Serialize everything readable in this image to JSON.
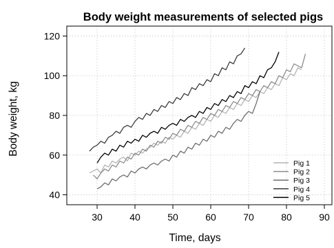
{
  "chart_data": {
    "type": "line",
    "title": "Body weight measurements of selected pigs",
    "xlabel": "Time, days",
    "ylabel": "Body weight, kg",
    "xlim": [
      22,
      92
    ],
    "ylim": [
      35,
      125
    ],
    "x_ticks": [
      30,
      40,
      50,
      60,
      70,
      80,
      90
    ],
    "y_ticks": [
      40,
      60,
      80,
      100,
      120
    ],
    "grid": true,
    "legend_position": "bottom-right",
    "series": [
      {
        "name": "Pig 1",
        "color": "#b4b4b4",
        "x": [
          28,
          29,
          30,
          31,
          32,
          33,
          34,
          35,
          36,
          37,
          38,
          39,
          40,
          41,
          42,
          43,
          44,
          45,
          46,
          47,
          48,
          49,
          50,
          51,
          52,
          53,
          54,
          55,
          56,
          57,
          58,
          59,
          60,
          61,
          62,
          63,
          64,
          65,
          66,
          67,
          68,
          69,
          70,
          71,
          72,
          73,
          74,
          75,
          76,
          77,
          78,
          79,
          80,
          81,
          82,
          83,
          84
        ],
        "y": [
          51,
          52,
          53,
          51,
          55,
          54,
          57,
          56,
          58,
          59,
          57,
          61,
          60,
          62,
          61,
          63,
          64,
          66,
          65,
          67,
          66,
          69,
          68,
          70,
          69,
          72,
          71,
          74,
          73,
          76,
          75,
          78,
          77,
          80,
          79,
          82,
          81,
          84,
          83,
          86,
          85,
          88,
          87,
          90,
          89,
          92,
          91,
          94,
          93,
          96,
          95,
          99,
          98,
          101,
          100,
          104,
          103
        ]
      },
      {
        "name": "Pig 2",
        "color": "#8c8c8c",
        "x": [
          29,
          30,
          31,
          32,
          33,
          34,
          35,
          36,
          37,
          38,
          39,
          40,
          41,
          42,
          43,
          44,
          45,
          46,
          47,
          48,
          49,
          50,
          51,
          52,
          53,
          54,
          55,
          56,
          57,
          58,
          59,
          60,
          61,
          62,
          63,
          64,
          65,
          66,
          67,
          68,
          69,
          70,
          71,
          72,
          73,
          74,
          75,
          76,
          77,
          78,
          79,
          80,
          81,
          82,
          83,
          84,
          85
        ],
        "y": [
          50,
          48,
          51,
          53,
          52,
          55,
          54,
          57,
          56,
          59,
          58,
          61,
          60,
          63,
          62,
          65,
          64,
          67,
          66,
          69,
          68,
          71,
          70,
          73,
          72,
          75,
          74,
          77,
          76,
          79,
          78,
          81,
          80,
          83,
          82,
          85,
          84,
          87,
          86,
          89,
          88,
          91,
          90,
          93,
          92,
          95,
          94,
          97,
          96,
          100,
          99,
          103,
          102,
          106,
          105,
          104,
          111
        ]
      },
      {
        "name": "Pig 3",
        "color": "#6e6e6e",
        "x": [
          30,
          31,
          32,
          33,
          34,
          35,
          36,
          37,
          38,
          39,
          40,
          41,
          42,
          43,
          44,
          45,
          46,
          47,
          48,
          49,
          50,
          51,
          52,
          53,
          54,
          55,
          56,
          57,
          58,
          59,
          60,
          61,
          62,
          63,
          64,
          65,
          66,
          67,
          68,
          69,
          70,
          71,
          72,
          73
        ],
        "y": [
          43,
          44,
          46,
          45,
          48,
          47,
          49,
          50,
          49,
          52,
          51,
          53,
          54,
          53,
          55,
          56,
          55,
          57,
          58,
          57,
          60,
          59,
          62,
          61,
          64,
          63,
          66,
          65,
          68,
          67,
          70,
          69,
          72,
          71,
          74,
          73,
          76,
          78,
          77,
          80,
          82,
          81,
          86,
          92
        ]
      },
      {
        "name": "Pig 4",
        "color": "#3a3a3a",
        "x": [
          28,
          29,
          30,
          31,
          32,
          33,
          34,
          35,
          36,
          37,
          38,
          39,
          40,
          41,
          42,
          43,
          44,
          45,
          46,
          47,
          48,
          49,
          50,
          51,
          52,
          53,
          54,
          55,
          56,
          57,
          58,
          59,
          60,
          61,
          62,
          63,
          64,
          65,
          66,
          67,
          68,
          69
        ],
        "y": [
          62,
          64,
          65,
          67,
          66,
          69,
          70,
          72,
          71,
          74,
          75,
          74,
          77,
          79,
          78,
          81,
          80,
          83,
          82,
          85,
          84,
          87,
          86,
          89,
          88,
          91,
          90,
          94,
          93,
          96,
          95,
          98,
          97,
          101,
          100,
          104,
          103,
          107,
          106,
          110,
          111,
          114
        ]
      },
      {
        "name": "Pig 5",
        "color": "#000000",
        "x": [
          30,
          31,
          32,
          33,
          34,
          35,
          36,
          37,
          38,
          39,
          40,
          41,
          42,
          43,
          44,
          45,
          46,
          47,
          48,
          49,
          50,
          51,
          52,
          53,
          54,
          55,
          56,
          57,
          58,
          59,
          60,
          61,
          62,
          63,
          64,
          65,
          66,
          67,
          68,
          69,
          70,
          71,
          72,
          73,
          74,
          75,
          76,
          77,
          78
        ],
        "y": [
          56,
          59,
          61,
          60,
          63,
          62,
          65,
          64,
          67,
          66,
          68,
          67,
          70,
          69,
          71,
          72,
          71,
          74,
          73,
          75,
          76,
          75,
          78,
          77,
          79,
          80,
          79,
          82,
          81,
          84,
          83,
          86,
          85,
          88,
          87,
          90,
          89,
          92,
          91,
          95,
          94,
          97,
          96,
          100,
          99,
          103,
          104,
          107,
          112
        ]
      }
    ]
  }
}
